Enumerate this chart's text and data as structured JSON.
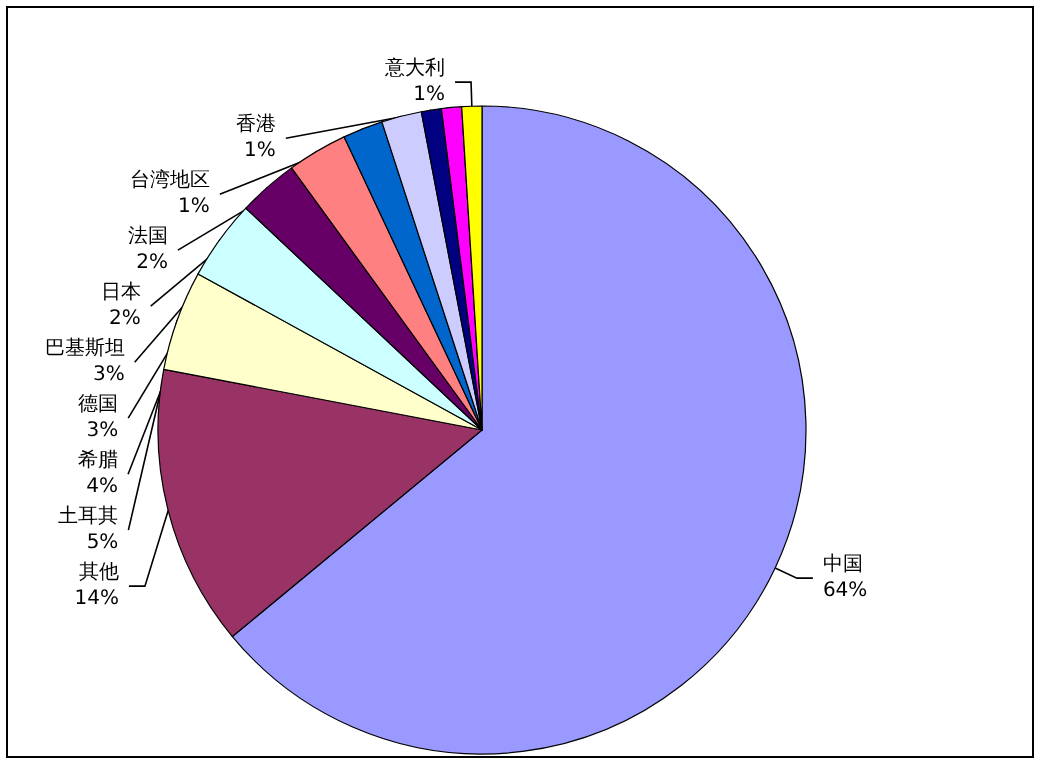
{
  "chart_data": {
    "type": "pie",
    "categories": [
      "中国",
      "其他",
      "土耳其",
      "希腊",
      "德国",
      "巴基斯坦",
      "日本",
      "法国",
      "台湾地区",
      "香港",
      "意大利"
    ],
    "values": [
      64,
      14,
      5,
      4,
      3,
      3,
      2,
      2,
      1,
      1,
      1
    ],
    "value_labels": [
      "64%",
      "14%",
      "5%",
      "4%",
      "3%",
      "3%",
      "2%",
      "2%",
      "1%",
      "1%",
      "1%"
    ],
    "colors": [
      "#9999ff",
      "#993366",
      "#ffffcc",
      "#ccffff",
      "#660066",
      "#ff8080",
      "#0066cc",
      "#ccccff",
      "#000080",
      "#ff00ff",
      "#ffff00"
    ],
    "legend": false
  }
}
